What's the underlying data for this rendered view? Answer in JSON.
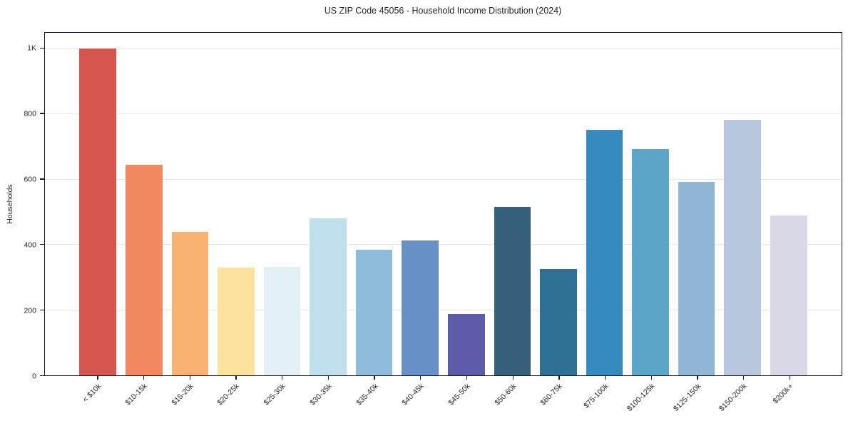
{
  "title": "US ZIP Code 45056 - Household Income Distribution (2024)",
  "chart_data": {
    "type": "bar",
    "title": "US ZIP Code 45056 - Household Income Distribution (2024)",
    "xlabel": "",
    "ylabel": "Households",
    "ylim": [
      0,
      1050
    ],
    "grid": "horizontal-on",
    "legend": "none",
    "categories": [
      "< $10k",
      "$10-15k",
      "$15-20k",
      "$20-25k",
      "$25-30k",
      "$30-35k",
      "$35-40k",
      "$40-45k",
      "$45-50k",
      "$50-60k",
      "$60-75k",
      "$75-100k",
      "$100-125k",
      "$125-150k",
      "$150-200k",
      "$200k+"
    ],
    "values": [
      1002,
      645,
      439,
      330,
      332,
      481,
      386,
      413,
      188,
      516,
      326,
      752,
      693,
      592,
      783,
      490
    ],
    "bar_colors": [
      "#d6564f",
      "#f2885f",
      "#f9b271",
      "#fce29d",
      "#e3f1f6",
      "#bfdfee",
      "#8fbcdb",
      "#6690c6",
      "#5c5caa",
      "#34607a",
      "#2f7195",
      "#358bbd",
      "#5ba5c9",
      "#8fb6d5",
      "#b6c7de",
      "#d8d8e6"
    ],
    "yticks": [
      {
        "value": 0,
        "label": "0"
      },
      {
        "value": 200,
        "label": "200"
      },
      {
        "value": 400,
        "label": "400"
      },
      {
        "value": 600,
        "label": "600"
      },
      {
        "value": 800,
        "label": "800"
      },
      {
        "value": 1000,
        "label": "1K"
      }
    ]
  },
  "colors": {
    "background": "#ffffff",
    "spine": "#1a1a1a",
    "grid": "#e7e7e7",
    "text": "#262626"
  }
}
